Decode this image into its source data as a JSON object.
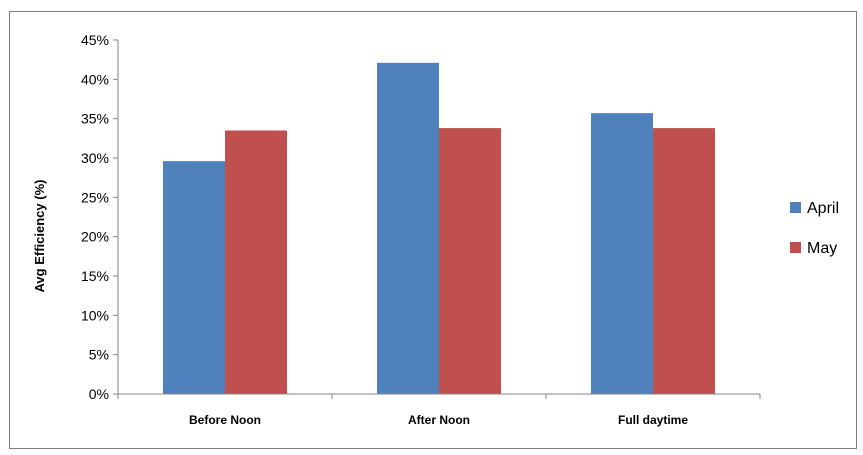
{
  "chart_data": {
    "type": "bar",
    "title": "",
    "xlabel": "",
    "ylabel": "Avg Efficiency (%)",
    "categories": [
      "Before Noon",
      "After Noon",
      "Full daytime"
    ],
    "series": [
      {
        "name": "April",
        "values": [
          29.6,
          42.1,
          35.7
        ],
        "color": "#4f81bd"
      },
      {
        "name": "May",
        "values": [
          33.5,
          33.8,
          33.8
        ],
        "color": "#c0504d"
      }
    ],
    "ylim": [
      0,
      45
    ],
    "yticks": [
      0,
      5,
      10,
      15,
      20,
      25,
      30,
      35,
      40,
      45
    ],
    "ytick_labels": [
      "0%",
      "5%",
      "10%",
      "15%",
      "20%",
      "25%",
      "30%",
      "35%",
      "40%",
      "45%"
    ],
    "grid": false,
    "legend": "right"
  }
}
